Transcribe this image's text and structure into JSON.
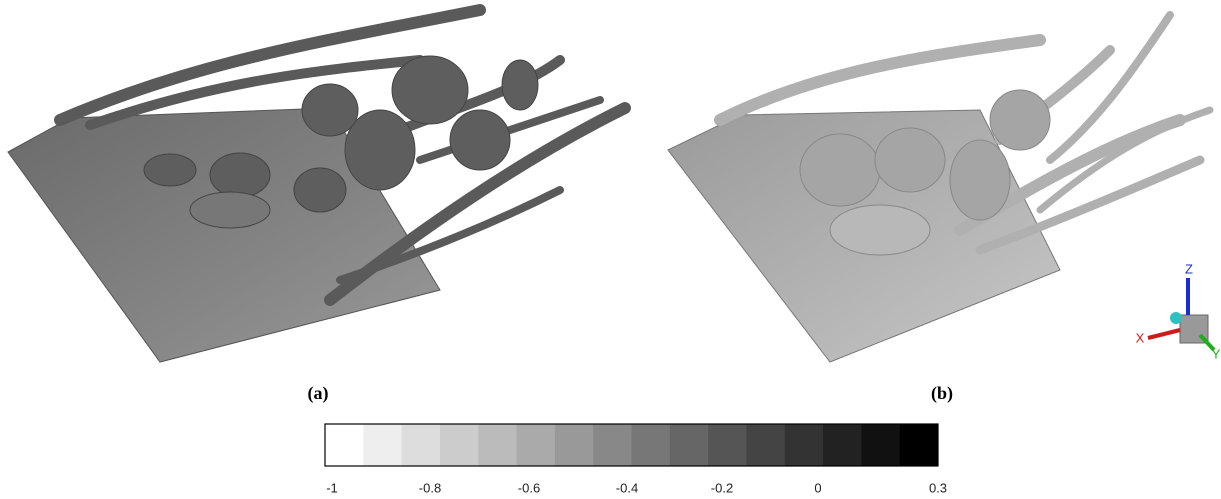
{
  "panels": [
    {
      "label": "(a)"
    },
    {
      "label": "(b)"
    }
  ],
  "axis_triad": {
    "x": "X",
    "y": "Y",
    "z": "Z"
  },
  "colorbar": {
    "ticks": [
      "-1",
      "-0.8",
      "-0.6",
      "-0.4",
      "-0.2",
      "0",
      "0.3"
    ]
  }
}
